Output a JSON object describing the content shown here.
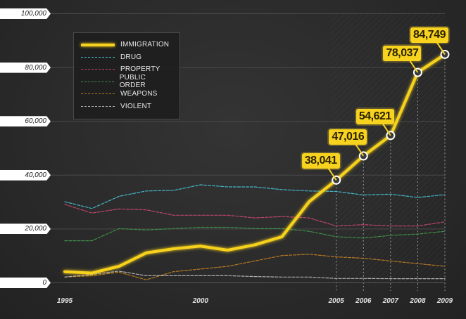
{
  "chart_data": {
    "type": "line",
    "title": "",
    "xlabel": "",
    "ylabel": "",
    "xlim": [
      1995,
      2009
    ],
    "ylim": [
      0,
      100000
    ],
    "y_ticks": [
      0,
      20000,
      40000,
      60000,
      80000,
      100000
    ],
    "y_tick_labels": [
      "0",
      "20,000",
      "40,000",
      "60,000",
      "80,000",
      "100,000"
    ],
    "x_tick_labels": [
      {
        "year": 1995,
        "label": "1995"
      },
      {
        "year": 2000,
        "label": "2000"
      },
      {
        "year": 2005,
        "label": "2005"
      },
      {
        "year": 2006,
        "label": "2006"
      },
      {
        "year": 2007,
        "label": "2007"
      },
      {
        "year": 2008,
        "label": "2008"
      },
      {
        "year": 2009,
        "label": "2009"
      }
    ],
    "x": [
      1995,
      1996,
      1997,
      1998,
      1999,
      2000,
      2001,
      2002,
      2003,
      2004,
      2005,
      2006,
      2007,
      2008,
      2009
    ],
    "series": [
      {
        "name": "IMMIGRATION",
        "color": "#f7d21e",
        "style": "solid",
        "values": [
          4000,
          3500,
          6000,
          11000,
          12500,
          13500,
          12000,
          14000,
          17000,
          30000,
          38041,
          47016,
          54621,
          78037,
          84749
        ]
      },
      {
        "name": "DRUG",
        "color": "#45b5c8",
        "style": "dashed",
        "values": [
          30000,
          27500,
          32000,
          34000,
          34200,
          36300,
          35500,
          35500,
          34500,
          34000,
          33800,
          32500,
          32800,
          31600,
          32600
        ]
      },
      {
        "name": "PROPERTY",
        "color": "#c0456e",
        "style": "dashed",
        "values": [
          29000,
          25800,
          27300,
          27000,
          25000,
          25000,
          25000,
          24000,
          24500,
          24000,
          21000,
          21500,
          21000,
          21000,
          22500
        ]
      },
      {
        "name": "PUBLIC ORDER",
        "color": "#3f8f49",
        "style": "dashed",
        "values": [
          15500,
          15500,
          20000,
          19500,
          20000,
          20500,
          20500,
          20000,
          20000,
          19000,
          17000,
          16500,
          17500,
          18000,
          19000
        ]
      },
      {
        "name": "WEAPONS",
        "color": "#b87a22",
        "style": "dashed",
        "values": [
          2000,
          2500,
          3800,
          1000,
          4000,
          5000,
          6000,
          8000,
          10000,
          10500,
          9500,
          9000,
          8000,
          7000,
          6000
        ]
      },
      {
        "name": "VIOLENT",
        "color": "#b0b0b0",
        "style": "dashed",
        "values": [
          2000,
          3000,
          4200,
          2500,
          2500,
          2500,
          2500,
          2200,
          2000,
          2000,
          1500,
          1500,
          1400,
          1400,
          1400
        ]
      }
    ],
    "annotations": [
      {
        "year": 2005,
        "value": 38041,
        "label": "38,041"
      },
      {
        "year": 2006,
        "value": 47016,
        "label": "47,016"
      },
      {
        "year": 2007,
        "value": 54621,
        "label": "54,621"
      },
      {
        "year": 2008,
        "value": 78037,
        "label": "78,037"
      },
      {
        "year": 2009,
        "value": 84749,
        "label": "84,749"
      }
    ],
    "legend": "top-left",
    "grid": true
  }
}
